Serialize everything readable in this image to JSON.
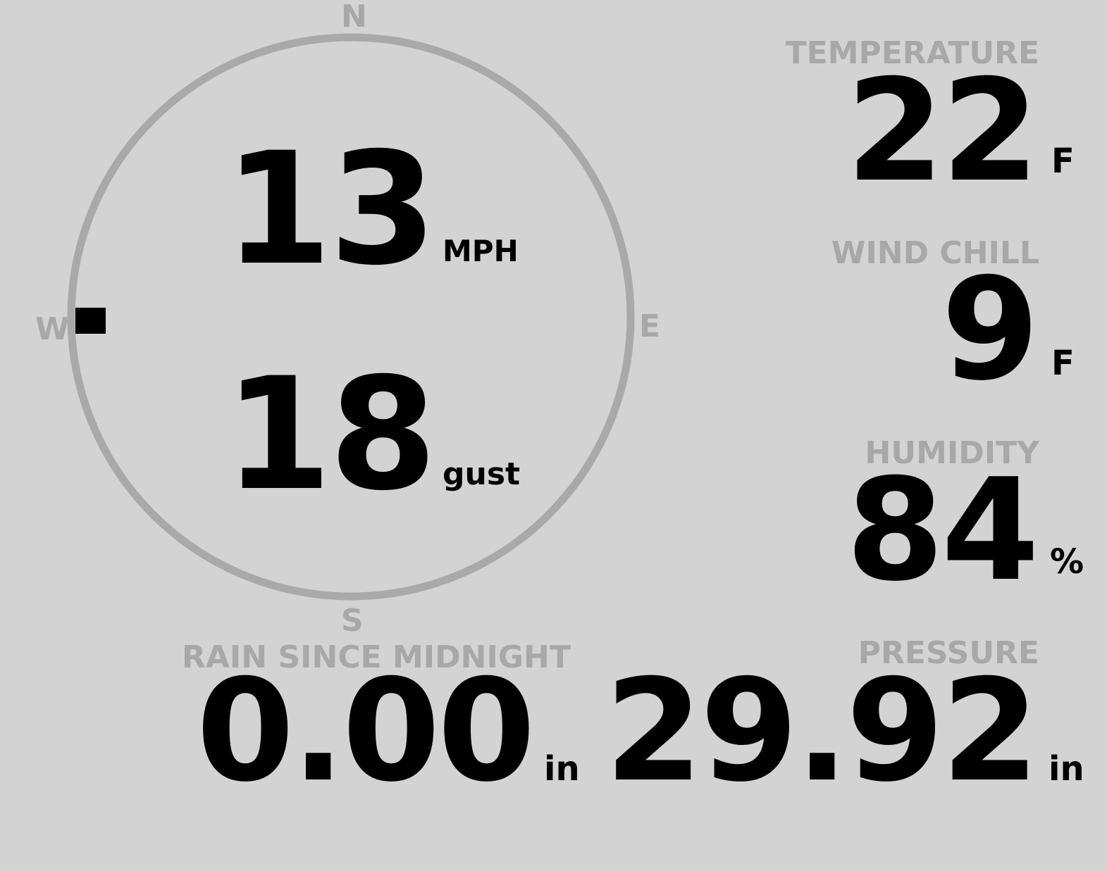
{
  "compass": {
    "north": "N",
    "south": "S",
    "east": "E",
    "west": "W",
    "wind_direction": "W",
    "ring_color": "#a9a9a9",
    "marker_color": "#000000"
  },
  "wind": {
    "speed": "13",
    "speed_unit": "MPH",
    "gust": "18",
    "gust_unit": "gust"
  },
  "temperature": {
    "label": "TEMPERATURE",
    "value": "22",
    "unit": "F"
  },
  "wind_chill": {
    "label": "WIND CHILL",
    "value": "9",
    "unit": "F"
  },
  "humidity": {
    "label": "HUMIDITY",
    "value": "84",
    "unit": "%"
  },
  "rain": {
    "label": "RAIN SINCE MIDNIGHT",
    "value": "0.00",
    "unit": "in"
  },
  "pressure": {
    "label": "PRESSURE",
    "value": "29.92",
    "unit": "in"
  },
  "colors": {
    "background": "#d3d3d3",
    "label": "#a8a8a8",
    "value": "#000000"
  }
}
